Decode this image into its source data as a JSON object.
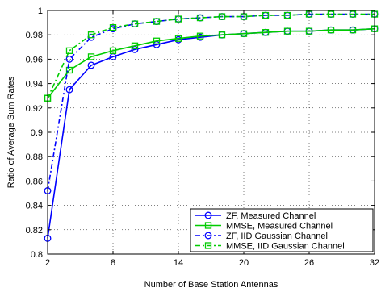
{
  "chart_data": {
    "type": "line",
    "title": "",
    "xlabel": "Number of Base Station Antennas",
    "ylabel": "Ratio of Average Sum Rates",
    "xlim": [
      2,
      32
    ],
    "ylim": [
      0.8,
      1.0
    ],
    "xticks": [
      2,
      8,
      14,
      20,
      26,
      32
    ],
    "yticks": [
      0.8,
      0.82,
      0.84,
      0.86,
      0.88,
      0.9,
      0.92,
      0.94,
      0.96,
      0.98,
      1.0
    ],
    "ytick_labels": [
      "0.8",
      "0.82",
      "0.84",
      "0.86",
      "0.88",
      "0.9",
      "0.92",
      "0.94",
      "0.96",
      "0.98",
      "1"
    ],
    "grid": true,
    "legend_position": "bottom-right",
    "x": [
      2,
      4,
      6,
      8,
      10,
      12,
      14,
      16,
      18,
      20,
      22,
      24,
      26,
      28,
      30,
      32
    ],
    "series": [
      {
        "name": "ZF, Measured Channel",
        "color": "#0000ff",
        "line_style": "solid",
        "marker": "circle",
        "values": [
          0.813,
          0.935,
          0.955,
          0.962,
          0.968,
          0.972,
          0.976,
          0.978,
          0.98,
          0.981,
          0.982,
          0.983,
          0.983,
          0.984,
          0.984,
          0.985
        ]
      },
      {
        "name": "MMSE, Measured Channel",
        "color": "#00cc00",
        "line_style": "solid",
        "marker": "square",
        "values": [
          0.928,
          0.951,
          0.962,
          0.967,
          0.971,
          0.975,
          0.977,
          0.979,
          0.98,
          0.981,
          0.982,
          0.983,
          0.983,
          0.984,
          0.984,
          0.985
        ]
      },
      {
        "name": "ZF, IID Gaussian Channel",
        "color": "#0000ff",
        "line_style": "dashdot",
        "marker": "circle",
        "values": [
          0.852,
          0.96,
          0.978,
          0.985,
          0.989,
          0.991,
          0.993,
          0.994,
          0.995,
          0.995,
          0.996,
          0.996,
          0.997,
          0.997,
          0.997,
          0.997
        ]
      },
      {
        "name": "MMSE, IID Gaussian Channel",
        "color": "#00cc00",
        "line_style": "dashdot",
        "marker": "square",
        "values": [
          0.928,
          0.967,
          0.98,
          0.986,
          0.989,
          0.991,
          0.993,
          0.994,
          0.995,
          0.995,
          0.996,
          0.996,
          0.997,
          0.997,
          0.997,
          0.997
        ]
      }
    ]
  }
}
